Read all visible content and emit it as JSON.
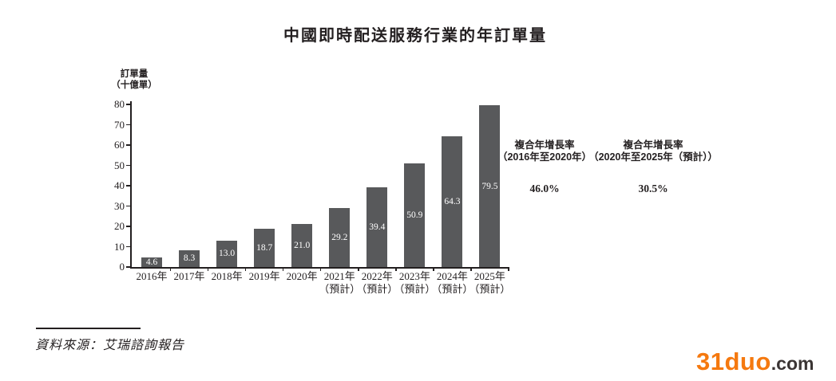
{
  "title": "中國即時配送服務行業的年訂單量",
  "chart_data": {
    "type": "bar",
    "title": "中國即時配送服務行業的年訂單量",
    "ylabel_lines": [
      "訂單量",
      "（十億單）"
    ],
    "categories": [
      "2016年",
      "2017年",
      "2018年",
      "2019年",
      "2020年",
      "2021年",
      "2022年",
      "2023年",
      "2024年",
      "2025年"
    ],
    "sublabels": [
      "",
      "",
      "",
      "",
      "",
      "（預計）",
      "（預計）",
      "（預計）",
      "（預計）",
      "（預計）"
    ],
    "values": [
      4.6,
      8.3,
      13.0,
      18.7,
      21.0,
      29.2,
      39.4,
      50.9,
      64.3,
      79.5
    ],
    "value_labels": [
      "4.6",
      "8.3",
      "13.0",
      "18.7",
      "21.0",
      "29.2",
      "39.4",
      "50.9",
      "64.3",
      "79.5"
    ],
    "ylim": [
      0,
      80
    ],
    "ytick_step": 10,
    "grid": false,
    "legend": "none",
    "bar_color": "#58595b",
    "value_label_color": "#ffffff",
    "axis_color": "#231f20"
  },
  "annotations": [
    {
      "title": "複合年增長率",
      "range": "（2016年至2020年）",
      "value": "46.0%"
    },
    {
      "title": "複合年增長率",
      "range": "（2020年至2025年（預計））",
      "value": "30.5%"
    }
  ],
  "source": {
    "text": "資料來源：艾瑞諮詢報告"
  },
  "watermark": {
    "brand": "31duo",
    "suffix": ".com",
    "brand_color": "#f5790f",
    "suffix_color": "#3b3534"
  }
}
